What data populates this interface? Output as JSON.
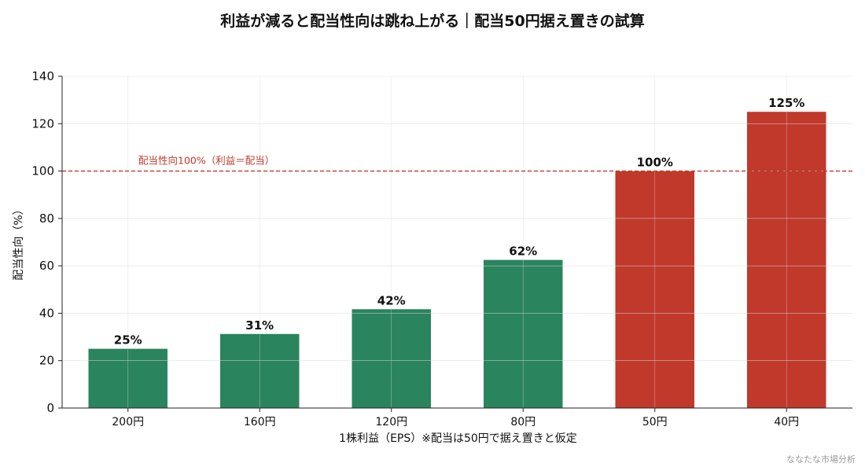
{
  "chart_data": {
    "type": "bar",
    "title": "利益が減ると配当性向は跳ね上がる｜配当50円据え置きの試算",
    "xlabel": "1株利益（EPS）※配当は50円で据え置きと仮定",
    "ylabel": "配当性向（%）",
    "ylim": [
      0,
      140
    ],
    "yticks": [
      0,
      20,
      40,
      60,
      80,
      100,
      120,
      140
    ],
    "categories": [
      "200円",
      "160円",
      "120円",
      "80円",
      "50円",
      "40円"
    ],
    "values": [
      25,
      31.25,
      41.7,
      62.5,
      100,
      125
    ],
    "data_labels": [
      "25%",
      "31%",
      "42%",
      "62%",
      "100%",
      "125%"
    ],
    "bar_colors": [
      "#2a845e",
      "#2a845e",
      "#2a845e",
      "#2a845e",
      "#c0392b",
      "#c0392b"
    ],
    "reference_line": {
      "value": 100,
      "label": "配当性向100%（利益＝配当）",
      "color": "#c0392b",
      "style": "dashed"
    },
    "grid": true,
    "legend": "none"
  },
  "watermark": "ななたな市場分析"
}
